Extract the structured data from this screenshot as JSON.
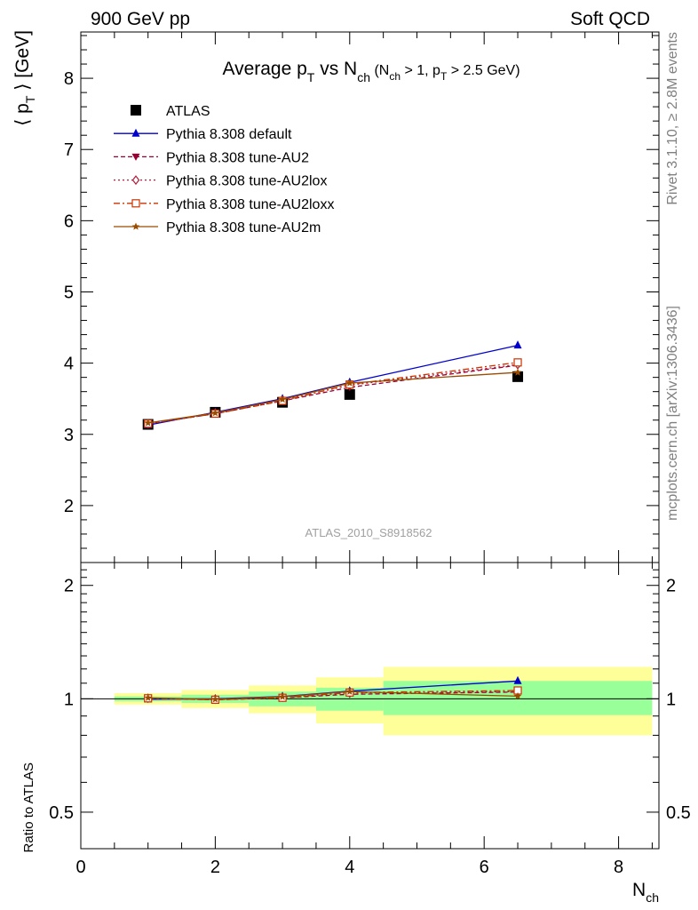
{
  "header": {
    "left": "900 GeV pp",
    "right": "Soft QCD"
  },
  "side": {
    "rivet": "Rivet 3.1.10, ≥ 2.8M events",
    "mcplots": "mcplots.cern.ch [arXiv:1306.3436]"
  },
  "title": {
    "main": "Average p",
    "main_sub": "T",
    "vs": " vs N",
    "vs_sub": "ch",
    "cut_open": " (N",
    "cut_sub1": "ch",
    "cut_mid": " > 1, p",
    "cut_sub2": "T",
    "cut_close": " > 2.5 GeV)"
  },
  "watermark": "ATLAS_2010_S8918562",
  "colors": {
    "ATLAS": "#000000",
    "default": "#0000cc",
    "AU2": "#990033",
    "AU2lox": "#b01f3a",
    "AU2loxx": "#cc3300",
    "AU2m": "#994c00",
    "band_inner": "#99ff99",
    "band_outer": "#ffff99"
  },
  "chart_data": [
    {
      "type": "line",
      "ylabel": "⟨ p_T ⟩ [GeV]",
      "ylabel_parts": {
        "open": "⟨ p",
        "sub": "T",
        "close": " ⟩  [GeV]"
      },
      "xlim": [
        0,
        8.6
      ],
      "ylim": [
        1.2,
        8.65
      ],
      "yticks": [
        "2",
        "3",
        "4",
        "5",
        "6",
        "7",
        "8"
      ],
      "x": [
        1,
        2,
        3,
        4,
        6.5
      ],
      "series": [
        {
          "name": "ATLAS",
          "marker": "square",
          "values": [
            3.14,
            3.31,
            3.45,
            3.56,
            3.81
          ]
        },
        {
          "name": "Pythia 8.308 default",
          "marker": "triangle-up",
          "values": [
            3.13,
            3.31,
            3.5,
            3.73,
            4.25
          ]
        },
        {
          "name": "Pythia 8.308 tune-AU2",
          "marker": "triangle-down",
          "values": [
            3.15,
            3.29,
            3.47,
            3.66,
            3.97
          ]
        },
        {
          "name": "Pythia 8.308 tune-AU2lox",
          "marker": "diamond",
          "values": [
            3.15,
            3.3,
            3.48,
            3.69,
            3.98
          ]
        },
        {
          "name": "Pythia 8.308 tune-AU2loxx",
          "marker": "open-square",
          "values": [
            3.15,
            3.29,
            3.47,
            3.7,
            4.01
          ]
        },
        {
          "name": "Pythia 8.308 tune-AU2m",
          "marker": "star",
          "values": [
            3.16,
            3.3,
            3.49,
            3.72,
            3.87
          ]
        }
      ]
    },
    {
      "type": "line",
      "ylabel": "Ratio to ATLAS",
      "xlabel": "N_ch",
      "xlabel_parts": {
        "main": "N",
        "sub": "ch"
      },
      "xlim": [
        0,
        8.6
      ],
      "ylim": [
        0.4,
        2.3
      ],
      "ytick_labels": [
        {
          "v": 0.5,
          "label": "0.5"
        },
        {
          "v": 1,
          "label": "1"
        },
        {
          "v": 2,
          "label": "2"
        }
      ],
      "xticks": [
        "0",
        "2",
        "4",
        "6",
        "8"
      ],
      "bands": [
        {
          "x0": 0.5,
          "x1": 1.5,
          "inner": [
            0.985,
            1.015
          ],
          "outer": [
            0.965,
            1.035
          ]
        },
        {
          "x0": 1.5,
          "x1": 2.5,
          "inner": [
            0.975,
            1.025
          ],
          "outer": [
            0.945,
            1.055
          ]
        },
        {
          "x0": 2.5,
          "x1": 3.5,
          "inner": [
            0.955,
            1.045
          ],
          "outer": [
            0.915,
            1.085
          ]
        },
        {
          "x0": 3.5,
          "x1": 4.5,
          "inner": [
            0.93,
            1.07
          ],
          "outer": [
            0.86,
            1.14
          ]
        },
        {
          "x0": 4.5,
          "x1": 8.5,
          "inner": [
            0.905,
            1.115
          ],
          "outer": [
            0.8,
            1.215
          ]
        }
      ],
      "x": [
        1,
        2,
        3,
        4,
        6.5
      ],
      "series": [
        {
          "name": "Pythia 8.308 default",
          "values": [
            0.997,
            1.0,
            1.014,
            1.048,
            1.115
          ]
        },
        {
          "name": "Pythia 8.308 tune-AU2",
          "values": [
            1.003,
            0.994,
            1.006,
            1.028,
            1.042
          ]
        },
        {
          "name": "Pythia 8.308 tune-AU2lox",
          "values": [
            1.003,
            0.997,
            1.009,
            1.036,
            1.045
          ]
        },
        {
          "name": "Pythia 8.308 tune-AU2loxx",
          "values": [
            1.003,
            0.994,
            1.006,
            1.039,
            1.052
          ]
        },
        {
          "name": "Pythia 8.308 tune-AU2m",
          "values": [
            1.006,
            0.997,
            1.012,
            1.045,
            1.016
          ]
        }
      ]
    }
  ]
}
